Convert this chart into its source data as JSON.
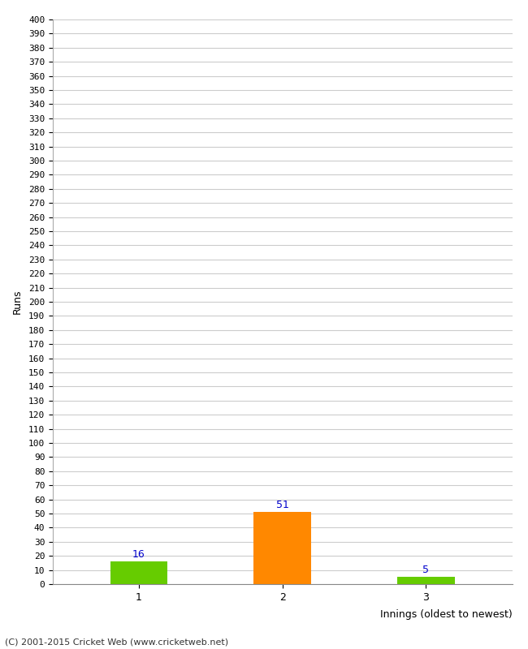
{
  "categories": [
    "1",
    "2",
    "3"
  ],
  "values": [
    16,
    51,
    5
  ],
  "bar_colors": [
    "#66cc00",
    "#ff8800",
    "#66cc00"
  ],
  "xlabel": "Innings (oldest to newest)",
  "ylabel": "Runs",
  "ylim": [
    0,
    400
  ],
  "ytick_step": 10,
  "value_labels": [
    16,
    51,
    5
  ],
  "value_label_color": "#0000cc",
  "background_color": "#ffffff",
  "grid_color": "#cccccc",
  "footer": "(C) 2001-2015 Cricket Web (www.cricketweb.net)",
  "bar_width": 0.4,
  "x_positions": [
    0,
    1,
    2
  ]
}
